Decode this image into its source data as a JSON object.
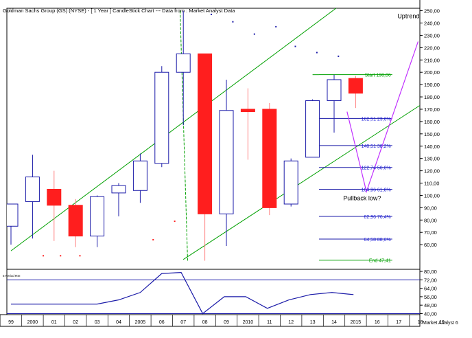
{
  "chart_data": {
    "type": "candlestick",
    "title": "Goldman Sachs Group (GS) (NYSE) -  [ 1 Year ] CandleStick Chart --- Data from : Market Analyst Data",
    "colors": {
      "up": "#1a1aa8",
      "down": "#ff1e1e",
      "channel": "#00a000",
      "fib": "#1a1aa8",
      "fib_text": "#1a1ad8",
      "projection": "#c030ff"
    },
    "price_axis": {
      "ylim": [
        40,
        252
      ],
      "ticks": [
        "250,00",
        "240,00",
        "230,00",
        "220,00",
        "210,00",
        "200,00",
        "190,00",
        "180,00",
        "170,00",
        "160,00",
        "150,00",
        "140,00",
        "130,00",
        "120,00",
        "110,00",
        "100,00",
        "90,00",
        "80,00",
        "70,00",
        "60,00"
      ]
    },
    "x_axis": {
      "labels": [
        "99",
        "2000",
        "01",
        "02",
        "03",
        "04",
        "2005",
        "06",
        "07",
        "08",
        "09",
        "2010",
        "11",
        "12",
        "13",
        "14",
        "2015",
        "16",
        "17",
        "18",
        "19"
      ],
      "footer": "Market Analyst 6"
    },
    "candles": [
      {
        "year": "1999",
        "open": 75,
        "high": 93,
        "low": 60,
        "close": 93
      },
      {
        "year": "2000",
        "open": 95,
        "high": 133,
        "low": 65,
        "close": 115
      },
      {
        "year": "2001",
        "open": 105,
        "high": 120,
        "low": 63,
        "close": 92
      },
      {
        "year": "2002",
        "open": 92,
        "high": 97,
        "low": 58,
        "close": 67
      },
      {
        "year": "2003",
        "open": 67,
        "high": 100,
        "low": 58,
        "close": 99
      },
      {
        "year": "2004",
        "open": 102,
        "high": 110,
        "low": 83,
        "close": 108
      },
      {
        "year": "2005",
        "open": 104,
        "high": 134,
        "low": 94,
        "close": 128
      },
      {
        "year": "2006",
        "open": 126,
        "high": 205,
        "low": 123,
        "close": 200
      },
      {
        "year": "2007",
        "open": 200,
        "high": 250,
        "low": 157,
        "close": 215
      },
      {
        "year": "2008",
        "open": 215,
        "high": 215,
        "low": 47,
        "close": 85
      },
      {
        "year": "2009",
        "open": 85,
        "high": 194,
        "low": 59,
        "close": 169
      },
      {
        "year": "2010",
        "open": 170,
        "high": 187,
        "low": 129,
        "close": 168
      },
      {
        "year": "2011",
        "open": 170,
        "high": 175,
        "low": 84,
        "close": 90
      },
      {
        "year": "2012",
        "open": 93,
        "high": 130,
        "low": 91,
        "close": 128
      },
      {
        "year": "2013",
        "open": 131,
        "high": 178,
        "low": 131,
        "close": 177
      },
      {
        "year": "2014",
        "open": 177,
        "high": 198,
        "low": 151,
        "close": 194
      },
      {
        "year": "2015",
        "open": 195,
        "high": 197,
        "low": 171,
        "close": 183
      }
    ],
    "channel_lines": [
      {
        "x": [
          0,
          18
        ],
        "y": [
          55,
          290
        ]
      },
      {
        "x": [
          8,
          19.5
        ],
        "y": [
          48,
          179
        ]
      }
    ],
    "fibonacci": {
      "x_start": 14.3,
      "x_end": 17.7,
      "levels": [
        {
          "price": 198.06,
          "label": "Start 198,06",
          "color": "green"
        },
        {
          "price": 162.51,
          "label": "162,51 23,6%",
          "color": "blue"
        },
        {
          "price": 140.51,
          "label": "140,51 38,2%",
          "color": "blue"
        },
        {
          "price": 122.74,
          "label": "122,74 50,0%",
          "color": "blue"
        },
        {
          "price": 104.96,
          "label": "104,96 61,8%",
          "color": "blue"
        },
        {
          "price": 82.96,
          "label": "82,96 76,4%",
          "color": "blue"
        },
        {
          "price": 64.58,
          "label": "64,58 88,6%",
          "color": "blue"
        },
        {
          "price": 47.41,
          "label": "End 47,41",
          "color": "green"
        }
      ]
    },
    "projection": {
      "points": [
        [
          15.6,
          168
        ],
        [
          16.5,
          103
        ],
        [
          18.9,
          225
        ]
      ]
    },
    "annotations": [
      {
        "text": "Uptrend",
        "x": 18.45,
        "price": 244
      },
      {
        "text": "Pullback low?",
        "x": 16.3,
        "price": 96
      }
    ],
    "dots": [
      [
        1.5,
        51
      ],
      [
        2.3,
        51
      ],
      [
        3.2,
        51
      ],
      [
        6.6,
        64
      ],
      [
        7.6,
        79
      ],
      [
        6.9,
        256
      ],
      [
        9.3,
        247
      ],
      [
        10.3,
        241
      ],
      [
        11.3,
        231
      ],
      [
        12.3,
        237
      ],
      [
        13.2,
        221
      ],
      [
        14.2,
        216
      ],
      [
        15.2,
        213
      ]
    ],
    "rsi": {
      "label": "5 Period RSI",
      "ylim": [
        39,
        82
      ],
      "ticks": [
        "80,00",
        "72,00",
        "64,00",
        "56,00",
        "48,00",
        "40,00"
      ],
      "guides": [
        72,
        40
      ],
      "points": [
        [
          0,
          49
        ],
        [
          1,
          49
        ],
        [
          2,
          49
        ],
        [
          3,
          49
        ],
        [
          4,
          49
        ],
        [
          5,
          53
        ],
        [
          6,
          60
        ],
        [
          7,
          78
        ],
        [
          7.9,
          79
        ],
        [
          8.9,
          40
        ],
        [
          9.9,
          56
        ],
        [
          10.9,
          56
        ],
        [
          11.9,
          45
        ],
        [
          12.9,
          53
        ],
        [
          13.9,
          58
        ],
        [
          14.9,
          60
        ],
        [
          15.9,
          58
        ]
      ]
    }
  }
}
